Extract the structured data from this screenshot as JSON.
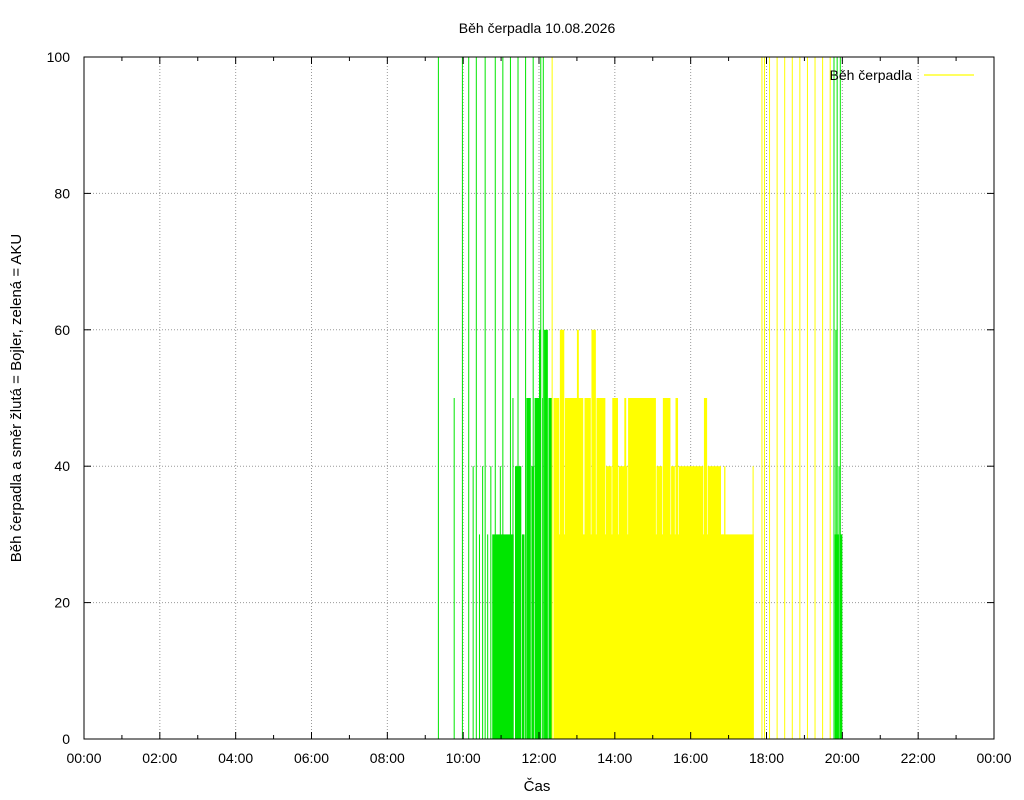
{
  "chart_data": {
    "type": "bar",
    "title": "Běh čerpadla 10.08.2026",
    "xlabel": "Čas",
    "ylabel": "Běh čerpadla a směr žlutá = Bojler, zelená = AKU",
    "x_unit": "hours",
    "xlim": [
      0,
      24
    ],
    "ylim": [
      0,
      100
    ],
    "x_ticks": [
      "00:00",
      "02:00",
      "04:00",
      "06:00",
      "08:00",
      "10:00",
      "12:00",
      "14:00",
      "16:00",
      "18:00",
      "20:00",
      "22:00",
      "00:00"
    ],
    "y_ticks": [
      "0",
      "20",
      "40",
      "60",
      "80",
      "100"
    ],
    "grid": true,
    "legend": {
      "position": "top-right",
      "entries": [
        {
          "label": "Běh čerpadla",
          "color": "#ffff00"
        }
      ]
    },
    "colors": {
      "boiler": "#ffff00",
      "aku": "#00e600"
    },
    "series": [
      {
        "key": "aku",
        "color": "#00e600",
        "segments": [
          {
            "from": "09:20",
            "to": "09:20",
            "value": 100
          },
          {
            "from": "09:45",
            "to": "09:45",
            "value": 50
          },
          {
            "from": "09:58",
            "to": "09:58",
            "value": 100
          },
          {
            "from": "10:08",
            "to": "10:08",
            "value": 100
          },
          {
            "from": "10:15",
            "to": "10:15",
            "value": 40
          },
          {
            "from": "10:20",
            "to": "10:20",
            "value": 100
          },
          {
            "from": "10:25",
            "to": "10:25",
            "value": 30
          },
          {
            "from": "10:30",
            "to": "10:30",
            "value": 40
          },
          {
            "from": "10:34",
            "to": "10:34",
            "value": 100
          },
          {
            "from": "10:38",
            "to": "10:38",
            "value": 30
          },
          {
            "from": "10:43",
            "to": "10:43",
            "value": 40
          },
          {
            "from": "10:46",
            "to": "11:20",
            "value": 30
          },
          {
            "from": "10:50",
            "to": "10:50",
            "value": 100
          },
          {
            "from": "10:58",
            "to": "10:58",
            "value": 40
          },
          {
            "from": "11:02",
            "to": "11:02",
            "value": 100
          },
          {
            "from": "11:14",
            "to": "11:14",
            "value": 100
          },
          {
            "from": "11:18",
            "to": "11:18",
            "value": 50
          },
          {
            "from": "11:22",
            "to": "11:32",
            "value": 40
          },
          {
            "from": "11:26",
            "to": "11:26",
            "value": 100
          },
          {
            "from": "11:33",
            "to": "11:37",
            "value": 30
          },
          {
            "from": "11:38",
            "to": "11:38",
            "value": 100
          },
          {
            "from": "11:40",
            "to": "11:47",
            "value": 50
          },
          {
            "from": "11:48",
            "to": "11:52",
            "value": 40
          },
          {
            "from": "11:50",
            "to": "11:50",
            "value": 100
          },
          {
            "from": "11:53",
            "to": "12:00",
            "value": 50
          },
          {
            "from": "12:00",
            "to": "12:03",
            "value": 60
          },
          {
            "from": "12:02",
            "to": "12:02",
            "value": 100
          },
          {
            "from": "12:05",
            "to": "12:05",
            "value": 50
          },
          {
            "from": "12:06",
            "to": "12:06",
            "value": 100
          },
          {
            "from": "12:08",
            "to": "12:14",
            "value": 60
          },
          {
            "from": "12:15",
            "to": "12:21",
            "value": 50
          },
          {
            "from": "19:46",
            "to": "19:46",
            "value": 100
          },
          {
            "from": "19:48",
            "to": "19:54",
            "value": 30
          },
          {
            "from": "19:49",
            "to": "19:49",
            "value": 60
          },
          {
            "from": "19:51",
            "to": "19:51",
            "value": 100
          },
          {
            "from": "19:54",
            "to": "19:54",
            "value": 40
          },
          {
            "from": "19:56",
            "to": "19:56",
            "value": 100
          },
          {
            "from": "19:57",
            "to": "20:00",
            "value": 30
          }
        ]
      },
      {
        "key": "boiler",
        "color": "#ffff00",
        "segments": [
          {
            "from": "12:20",
            "to": "12:20",
            "value": 100
          },
          {
            "from": "12:23",
            "to": "17:40",
            "value": 30
          },
          {
            "from": "12:23",
            "to": "12:32",
            "value": 50
          },
          {
            "from": "12:33",
            "to": "12:40",
            "value": 60
          },
          {
            "from": "12:41",
            "to": "13:10",
            "value": 50
          },
          {
            "from": "13:00",
            "to": "13:03",
            "value": 60
          },
          {
            "from": "13:12",
            "to": "13:22",
            "value": 50
          },
          {
            "from": "13:23",
            "to": "13:30",
            "value": 60
          },
          {
            "from": "13:31",
            "to": "13:45",
            "value": 50
          },
          {
            "from": "13:46",
            "to": "13:55",
            "value": 40
          },
          {
            "from": "13:56",
            "to": "14:05",
            "value": 50
          },
          {
            "from": "14:06",
            "to": "14:20",
            "value": 40
          },
          {
            "from": "14:15",
            "to": "14:18",
            "value": 50
          },
          {
            "from": "14:21",
            "to": "15:05",
            "value": 50
          },
          {
            "from": "14:30",
            "to": "14:33",
            "value": 40
          },
          {
            "from": "15:06",
            "to": "15:15",
            "value": 40
          },
          {
            "from": "15:16",
            "to": "15:28",
            "value": 50
          },
          {
            "from": "15:29",
            "to": "15:35",
            "value": 40
          },
          {
            "from": "15:36",
            "to": "15:40",
            "value": 50
          },
          {
            "from": "15:41",
            "to": "16:20",
            "value": 40
          },
          {
            "from": "16:21",
            "to": "16:26",
            "value": 50
          },
          {
            "from": "16:27",
            "to": "16:48",
            "value": 40
          },
          {
            "from": "16:49",
            "to": "16:52",
            "value": 30
          },
          {
            "from": "16:53",
            "to": "16:55",
            "value": 40
          },
          {
            "from": "17:38",
            "to": "17:38",
            "value": 40
          },
          {
            "from": "17:52",
            "to": "17:52",
            "value": 100
          },
          {
            "from": "17:56",
            "to": "17:56",
            "value": 100
          },
          {
            "from": "18:04",
            "to": "18:04",
            "value": 100
          },
          {
            "from": "18:16",
            "to": "18:16",
            "value": 100
          },
          {
            "from": "18:28",
            "to": "18:28",
            "value": 100
          },
          {
            "from": "18:40",
            "to": "18:40",
            "value": 100
          },
          {
            "from": "18:52",
            "to": "18:52",
            "value": 100
          },
          {
            "from": "19:04",
            "to": "19:04",
            "value": 100
          },
          {
            "from": "19:16",
            "to": "19:16",
            "value": 100
          },
          {
            "from": "19:28",
            "to": "19:28",
            "value": 100
          },
          {
            "from": "19:40",
            "to": "19:40",
            "value": 100
          }
        ]
      }
    ]
  }
}
